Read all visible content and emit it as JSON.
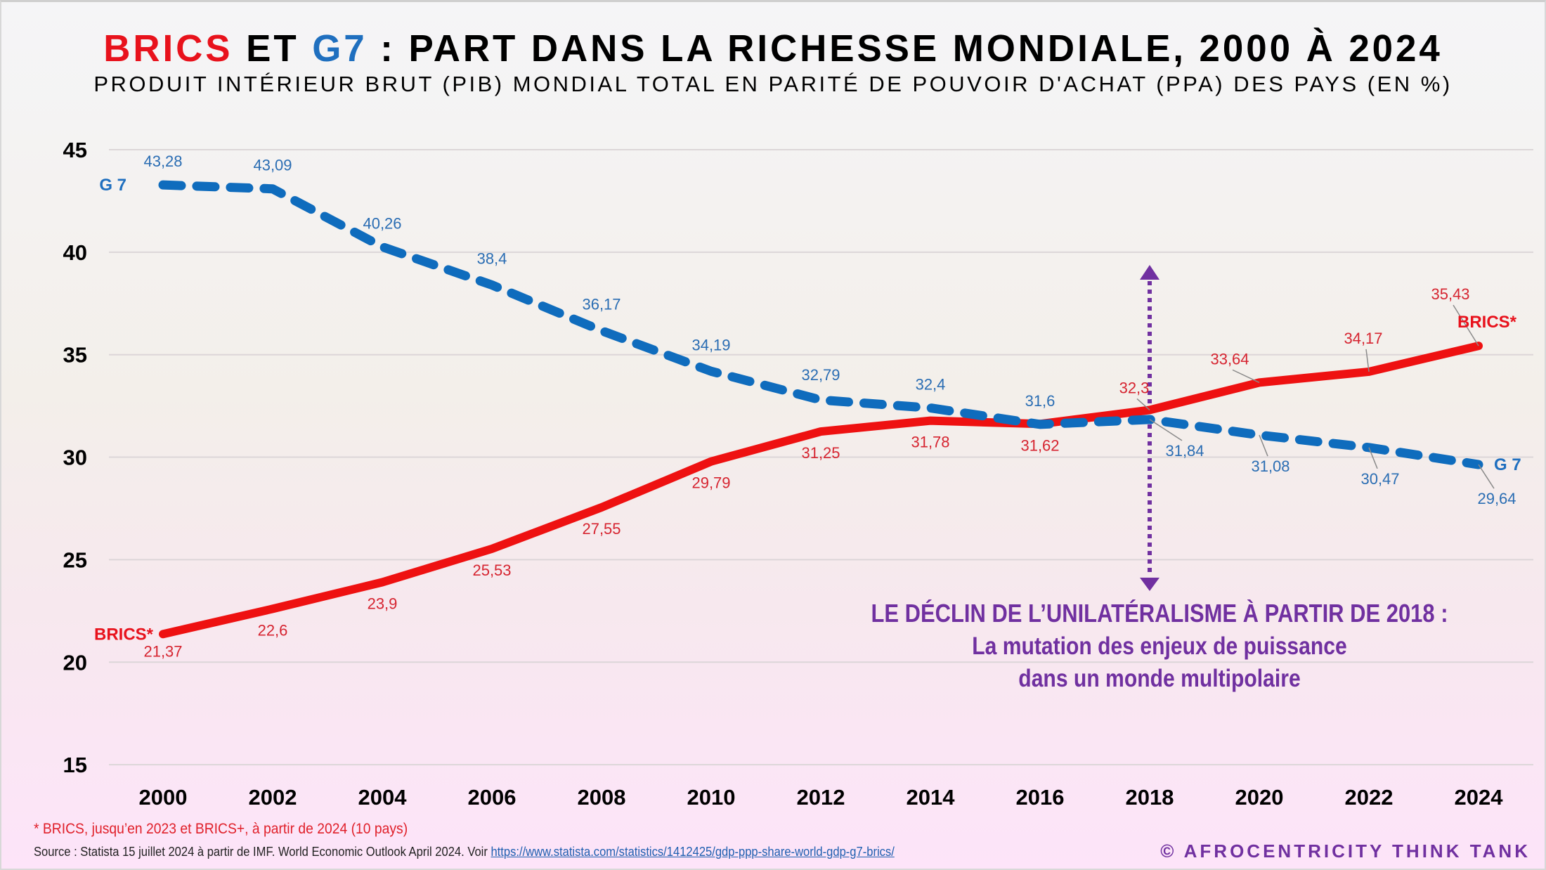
{
  "title": {
    "part1": "BRICS",
    "part2": " ET ",
    "part3": "G7",
    "part4": " : PART DANS LA RICHESSE MONDIALE, 2000 À 2024"
  },
  "subtitle": "PRODUIT INTÉRIEUR BRUT (PIB) MONDIAL TOTAL EN PARITÉ DE POUVOIR D'ACHAT (PPA) DES PAYS (EN %)",
  "annotation": {
    "line1": "LE DÉCLIN DE L’UNILATÉRALISME À PARTIR DE 2018 :",
    "line2": "La mutation des enjeux de puissance",
    "line3": "dans un monde multipolaire",
    "marker_year": "2018"
  },
  "footnote": "* BRICS, jusqu’en 2023 et BRICS+, à partir de 2024 (10 pays)",
  "source": {
    "text": "Source : Statista 15 juillet 2024 à partir de IMF. World Economic Outlook April 2024. Voir ",
    "link": "https://www.statista.com/statistics/1412425/gdp-ppp-share-world-gdp-g7-brics/"
  },
  "copyright": "© AFROCENTRICITY THINK TANK",
  "colors": {
    "brics": "#ee1111",
    "g7": "#0f6cbd",
    "annotation": "#7030a0"
  },
  "chart_data": {
    "type": "line",
    "title": "BRICS ET G7 : PART DANS LA RICHESSE MONDIALE, 2000 À 2024",
    "subtitle": "PRODUIT INTÉRIEUR BRUT (PIB) MONDIAL TOTAL EN PARITÉ DE POUVOIR D'ACHAT (PPA) DES PAYS (EN %)",
    "xlabel": "",
    "ylabel": "",
    "x": [
      "2000",
      "2002",
      "2004",
      "2006",
      "2008",
      "2010",
      "2012",
      "2014",
      "2016",
      "2018",
      "2020",
      "2022",
      "2024"
    ],
    "yticks": [
      "15",
      "20",
      "25",
      "30",
      "35",
      "40",
      "45"
    ],
    "ylim": [
      15,
      45
    ],
    "grid": true,
    "series": [
      {
        "name": "G 7",
        "style": "dashed",
        "values": [
          43.28,
          43.09,
          40.26,
          38.4,
          36.17,
          34.19,
          32.79,
          32.4,
          31.6,
          31.84,
          31.08,
          30.47,
          29.64
        ],
        "labels": [
          "43,28",
          "43,09",
          "40,26",
          "38,4",
          "36,17",
          "34,19",
          "32,79",
          "32,4",
          "31,6",
          "31,84",
          "31,08",
          "30,47",
          "29,64"
        ]
      },
      {
        "name": "BRICS*",
        "style": "solid",
        "values": [
          21.37,
          22.6,
          23.9,
          25.53,
          27.55,
          29.79,
          31.25,
          31.78,
          31.62,
          32.3,
          33.64,
          34.17,
          35.43
        ],
        "labels": [
          "21,37",
          "22,6",
          "23,9",
          "25,53",
          "27,55",
          "29,79",
          "31,25",
          "31,78",
          "31,62",
          "32,3",
          "33,64",
          "34,17",
          "35,43"
        ]
      }
    ]
  }
}
